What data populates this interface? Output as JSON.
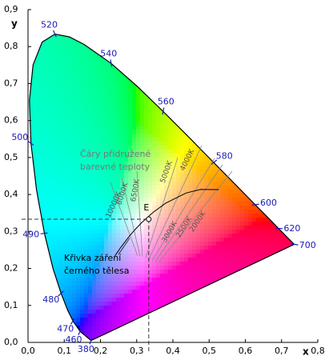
{
  "chart_data": {
    "type": "chromaticity",
    "xlabel": "x",
    "ylabel": "y",
    "xlim": [
      0,
      0.8
    ],
    "ylim": [
      0,
      0.9
    ],
    "xticks": [
      {
        "value": 0,
        "label": "0,0"
      },
      {
        "value": 0.1,
        "label": "0,1"
      },
      {
        "value": 0.2,
        "label": "0,2"
      },
      {
        "value": 0.3,
        "label": "0,3"
      },
      {
        "value": 0.4,
        "label": "0,4"
      },
      {
        "value": 0.5,
        "label": "0,5"
      },
      {
        "value": 0.6,
        "label": "0,6"
      },
      {
        "value": 0.7,
        "label": "0,7"
      },
      {
        "value": 0.8,
        "label": "0,8"
      }
    ],
    "yticks": [
      {
        "value": 0,
        "label": "0,0"
      },
      {
        "value": 0.1,
        "label": "0,1"
      },
      {
        "value": 0.2,
        "label": "0,2"
      },
      {
        "value": 0.3,
        "label": "0,3"
      },
      {
        "value": 0.4,
        "label": "0,4"
      },
      {
        "value": 0.5,
        "label": "0,5"
      },
      {
        "value": 0.6,
        "label": "0,6"
      },
      {
        "value": 0.7,
        "label": "0,7"
      },
      {
        "value": 0.8,
        "label": "0,8"
      },
      {
        "value": 0.9,
        "label": "0,9"
      }
    ],
    "locus": {
      "x": [
        0.1741,
        0.144,
        0.1241,
        0.1096,
        0.0913,
        0.0687,
        0.0454,
        0.0235,
        0.0082,
        0.0039,
        0.0139,
        0.0389,
        0.0743,
        0.1142,
        0.1547,
        0.2296,
        0.3016,
        0.3731,
        0.4441,
        0.5125,
        0.5752,
        0.627,
        0.6658,
        0.6915,
        0.719,
        0.7347
      ],
      "y": [
        0.005,
        0.0297,
        0.0578,
        0.0868,
        0.1327,
        0.2007,
        0.295,
        0.4127,
        0.5384,
        0.6548,
        0.7502,
        0.812,
        0.8338,
        0.8262,
        0.8059,
        0.7543,
        0.6923,
        0.6245,
        0.5547,
        0.4866,
        0.4242,
        0.3725,
        0.334,
        0.3083,
        0.2809,
        0.2653
      ],
      "wavelengths": [
        380,
        460,
        470,
        null,
        480,
        null,
        490,
        null,
        500,
        null,
        null,
        null,
        520,
        null,
        null,
        540,
        null,
        560,
        null,
        580,
        null,
        600,
        null,
        620,
        null,
        700
      ]
    },
    "planckian_locus": {
      "label": [
        "Křivka záření",
        "černého tělesa"
      ],
      "x": [
        0.5267,
        0.477,
        0.4369,
        0.3805,
        0.3451,
        0.3135,
        0.2952,
        0.2807,
        0.2565,
        0.24
      ],
      "y": [
        0.4133,
        0.4137,
        0.4041,
        0.3768,
        0.3516,
        0.3237,
        0.3048,
        0.2884,
        0.2577,
        0.234
      ]
    },
    "isotherm_title": [
      "Čáry přidružené",
      "barevné teploty"
    ],
    "isotherms": [
      "10000K",
      "8000K",
      "6500K",
      "5000K",
      "4000K",
      "3000K",
      "2500K",
      "2000K"
    ],
    "white_point": {
      "label": "E",
      "x": 0.3333,
      "y": 0.3333
    }
  }
}
